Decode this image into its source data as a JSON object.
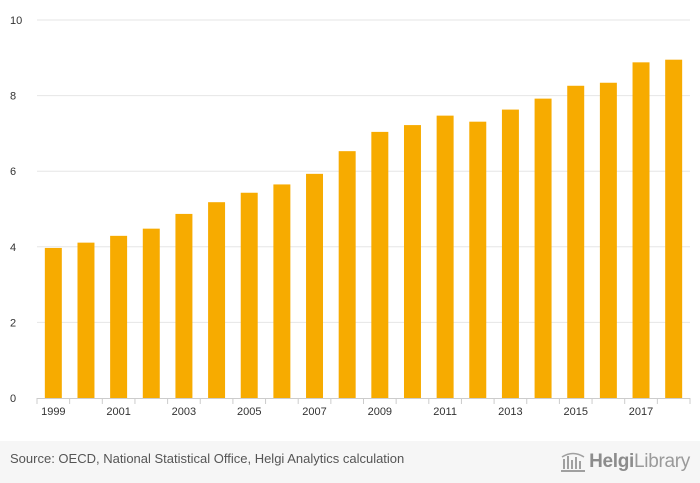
{
  "chart_data": {
    "type": "bar",
    "title": "",
    "xlabel": "",
    "ylabel": "",
    "categories": [
      "1999",
      "2000",
      "2001",
      "2002",
      "2003",
      "2004",
      "2005",
      "2006",
      "2007",
      "2008",
      "2009",
      "2010",
      "2011",
      "2012",
      "2013",
      "2014",
      "2015",
      "2016",
      "2017",
      "2018"
    ],
    "values": [
      3.97,
      4.11,
      4.29,
      4.48,
      4.87,
      5.18,
      5.43,
      5.65,
      5.93,
      6.53,
      7.04,
      7.22,
      7.47,
      7.31,
      7.63,
      7.92,
      8.26,
      8.34,
      8.88,
      8.95
    ],
    "x_tick_labels": [
      "1999",
      "2001",
      "2003",
      "2005",
      "2007",
      "2009",
      "2011",
      "2013",
      "2015",
      "2017"
    ],
    "ylim": [
      0,
      10
    ],
    "y_ticks": [
      0,
      2,
      4,
      6,
      8,
      10
    ],
    "grid": true,
    "bar_color": "#f7ab00",
    "grid_color": "#e6e6e6"
  },
  "footer": {
    "source": "Source: OECD, National Statistical Office, Helgi Analytics calculation",
    "logo_bold": "Helgi",
    "logo_rest": "Library"
  }
}
